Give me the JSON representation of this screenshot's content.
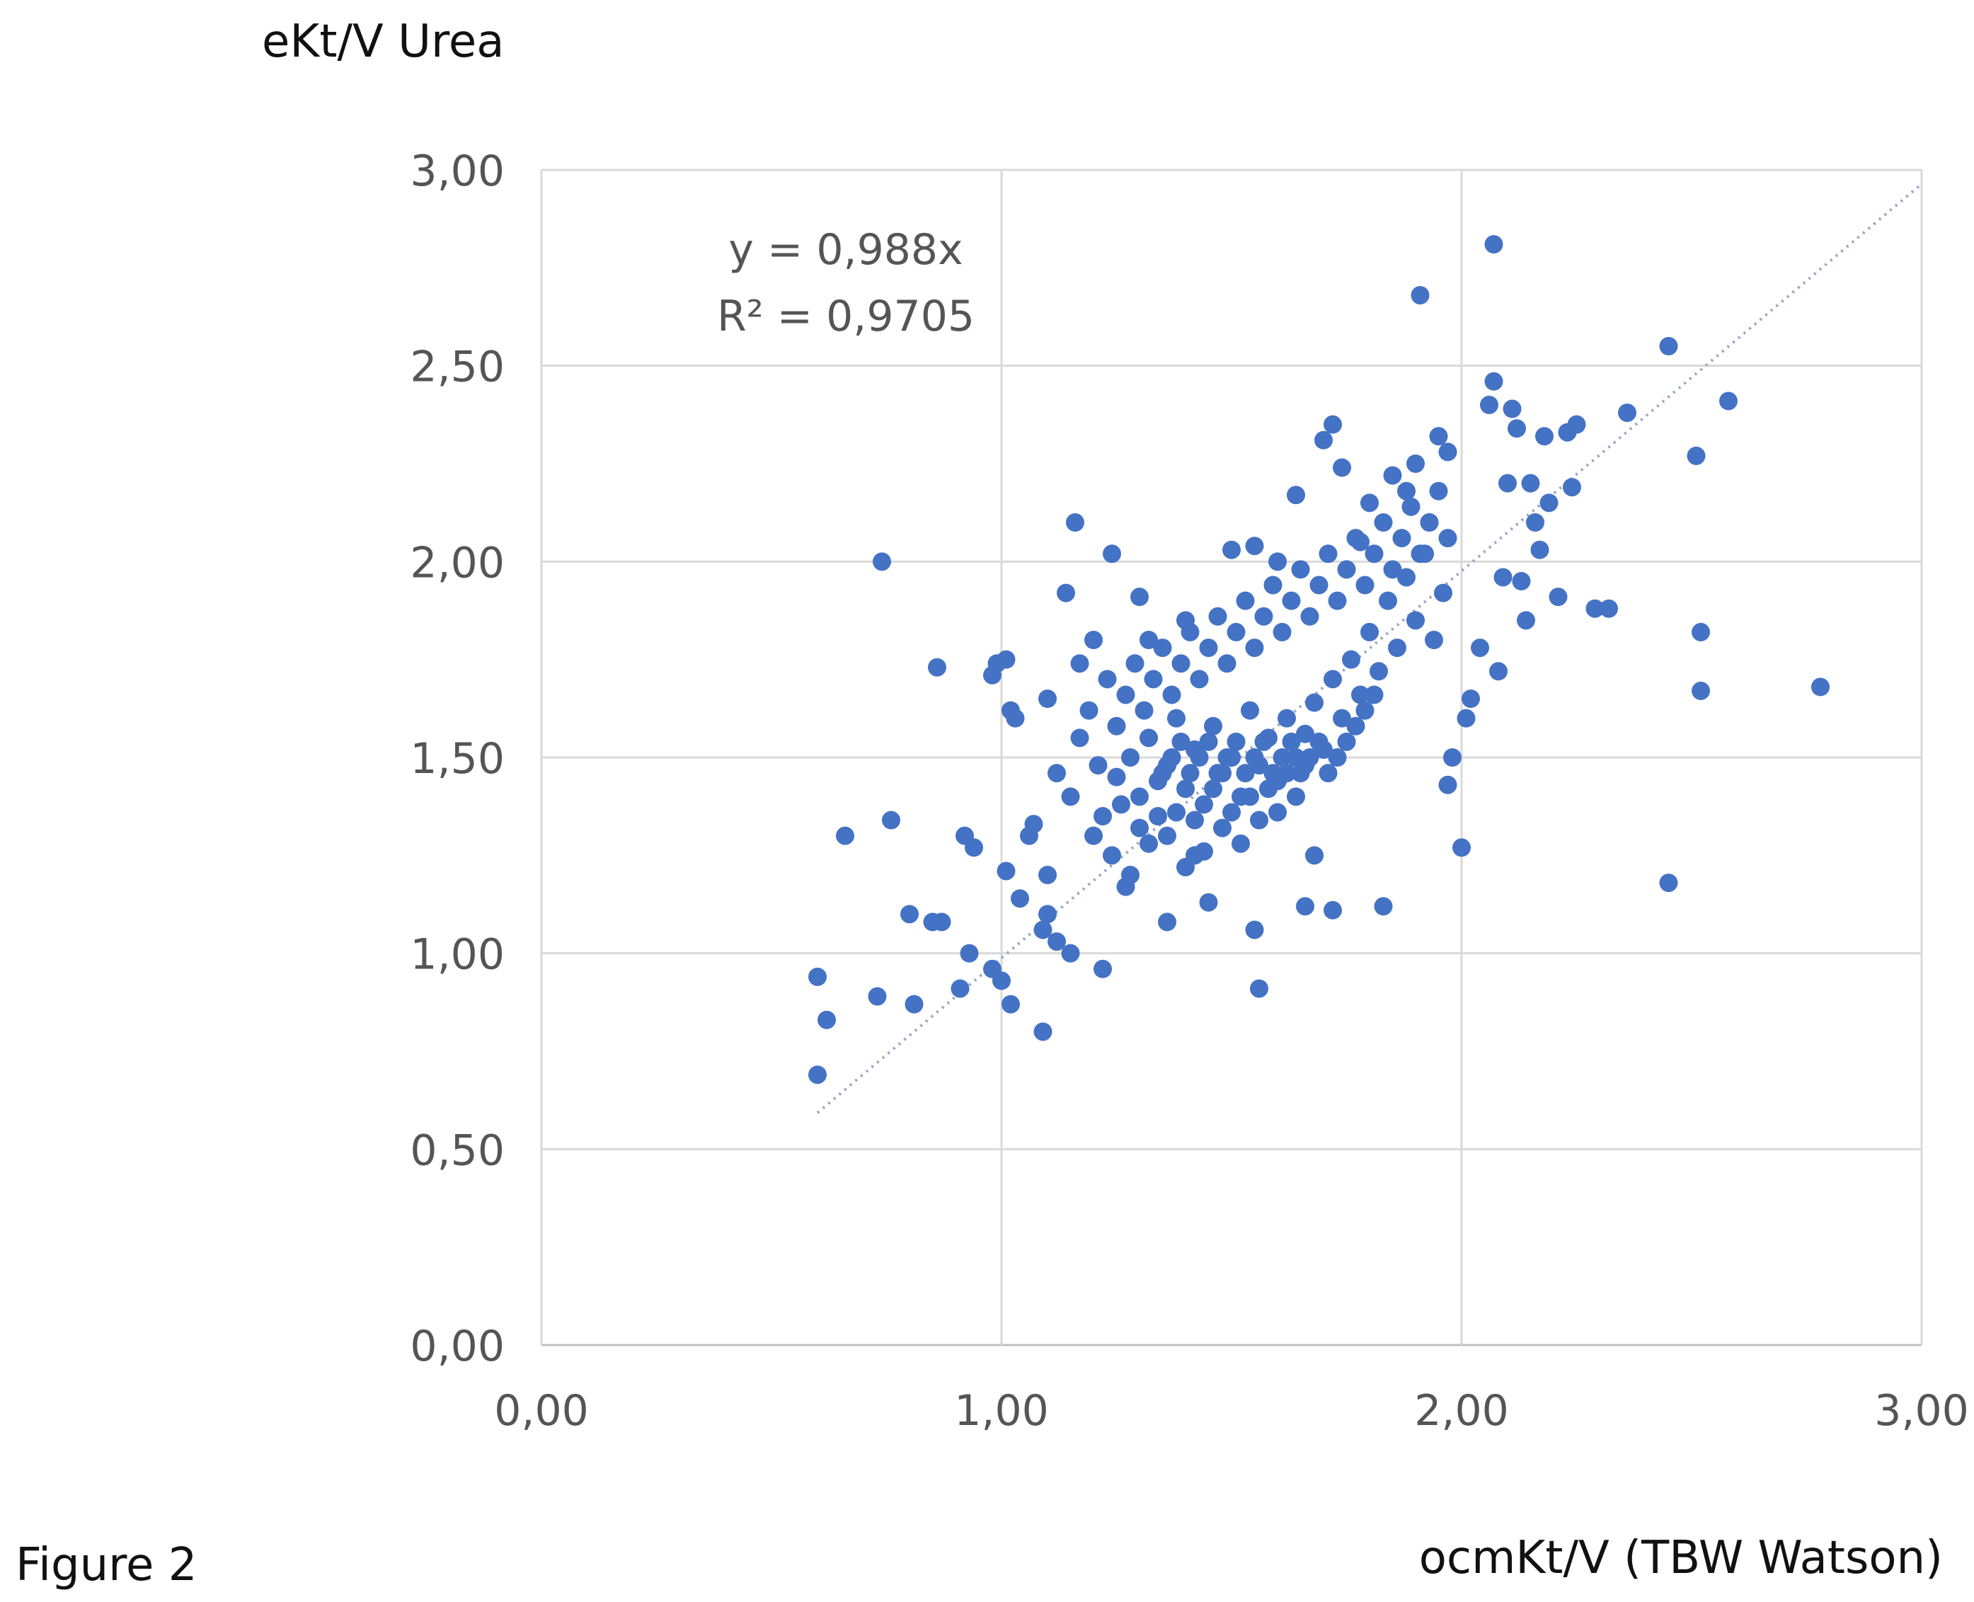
{
  "caption": "Figure 2",
  "chart_data": {
    "type": "scatter",
    "ylabel": "eKt/V Urea",
    "xlabel": "ocmKt/V (TBW Watson)",
    "xlim": [
      0,
      3
    ],
    "ylim": [
      0,
      3
    ],
    "x_ticks": [
      "0,00",
      "1,00",
      "2,00",
      "3,00"
    ],
    "y_ticks": [
      "0,00",
      "0,50",
      "1,00",
      "1,50",
      "2,00",
      "2,50",
      "3,00"
    ],
    "x_tick_values": [
      0,
      1,
      2,
      3
    ],
    "y_tick_values": [
      0,
      0.5,
      1,
      1.5,
      2,
      2.5,
      3
    ],
    "grid": true,
    "trendline": {
      "slope": 0.988,
      "x_range": [
        0.6,
        3.0
      ],
      "style": "dotted"
    },
    "annotations": [
      "y = 0,988x",
      "R² = 0,9705"
    ],
    "marker_color": "#4472C4",
    "points": [
      [
        0.6,
        0.69
      ],
      [
        0.6,
        0.94
      ],
      [
        0.62,
        0.83
      ],
      [
        0.66,
        1.3
      ],
      [
        0.73,
        0.89
      ],
      [
        0.74,
        2.0
      ],
      [
        0.76,
        1.34
      ],
      [
        0.8,
        1.1
      ],
      [
        0.81,
        0.87
      ],
      [
        0.85,
        1.08
      ],
      [
        0.86,
        1.73
      ],
      [
        0.87,
        1.08
      ],
      [
        0.91,
        0.91
      ],
      [
        0.92,
        1.3
      ],
      [
        0.93,
        1.0
      ],
      [
        0.94,
        1.27
      ],
      [
        0.98,
        0.96
      ],
      [
        0.98,
        1.71
      ],
      [
        0.99,
        1.74
      ],
      [
        1.0,
        0.93
      ],
      [
        1.01,
        1.75
      ],
      [
        1.01,
        1.21
      ],
      [
        1.02,
        0.87
      ],
      [
        1.02,
        1.62
      ],
      [
        1.03,
        1.6
      ],
      [
        1.04,
        1.14
      ],
      [
        1.06,
        1.3
      ],
      [
        1.07,
        1.33
      ],
      [
        1.09,
        1.06
      ],
      [
        1.09,
        0.8
      ],
      [
        1.1,
        1.1
      ],
      [
        1.1,
        1.2
      ],
      [
        1.1,
        1.65
      ],
      [
        1.12,
        1.46
      ],
      [
        1.12,
        1.03
      ],
      [
        1.14,
        1.92
      ],
      [
        1.15,
        1.0
      ],
      [
        1.16,
        2.1
      ],
      [
        1.17,
        1.74
      ],
      [
        1.2,
        1.8
      ],
      [
        1.22,
        0.96
      ],
      [
        1.24,
        2.02
      ],
      [
        1.27,
        1.17
      ],
      [
        1.3,
        1.91
      ],
      [
        1.32,
        1.8
      ],
      [
        1.36,
        1.08
      ],
      [
        1.4,
        1.85
      ],
      [
        1.42,
        1.25
      ],
      [
        1.45,
        1.13
      ],
      [
        1.5,
        2.03
      ],
      [
        1.55,
        1.06
      ],
      [
        1.56,
        0.91
      ],
      [
        1.55,
        2.04
      ],
      [
        1.6,
        2.0
      ],
      [
        1.64,
        2.17
      ],
      [
        1.66,
        1.12
      ],
      [
        1.68,
        1.25
      ],
      [
        1.7,
        2.31
      ],
      [
        1.72,
        2.35
      ],
      [
        1.72,
        1.11
      ],
      [
        1.74,
        2.24
      ],
      [
        1.78,
        2.05
      ],
      [
        1.8,
        2.15
      ],
      [
        1.83,
        1.12
      ],
      [
        1.85,
        2.22
      ],
      [
        1.88,
        2.18
      ],
      [
        1.9,
        2.25
      ],
      [
        1.91,
        2.68
      ],
      [
        1.93,
        2.1
      ],
      [
        1.95,
        2.32
      ],
      [
        1.97,
        2.28
      ],
      [
        1.97,
        1.43
      ],
      [
        1.98,
        1.5
      ],
      [
        2.0,
        1.27
      ],
      [
        2.01,
        1.6
      ],
      [
        2.02,
        1.65
      ],
      [
        2.04,
        1.78
      ],
      [
        2.06,
        2.4
      ],
      [
        2.07,
        2.46
      ],
      [
        2.07,
        2.81
      ],
      [
        2.08,
        1.72
      ],
      [
        2.09,
        1.96
      ],
      [
        2.1,
        2.2
      ],
      [
        2.11,
        2.39
      ],
      [
        2.12,
        2.34
      ],
      [
        2.13,
        1.95
      ],
      [
        2.14,
        1.85
      ],
      [
        2.15,
        2.2
      ],
      [
        2.16,
        2.1
      ],
      [
        2.17,
        2.03
      ],
      [
        2.18,
        2.32
      ],
      [
        2.19,
        2.15
      ],
      [
        2.21,
        1.91
      ],
      [
        2.23,
        2.33
      ],
      [
        2.24,
        2.19
      ],
      [
        2.25,
        2.35
      ],
      [
        2.29,
        1.88
      ],
      [
        2.32,
        1.88
      ],
      [
        2.36,
        2.38
      ],
      [
        2.45,
        2.55
      ],
      [
        2.45,
        1.18
      ],
      [
        2.51,
        2.27
      ],
      [
        2.52,
        1.82
      ],
      [
        2.52,
        1.67
      ],
      [
        2.58,
        2.41
      ],
      [
        2.78,
        1.68
      ],
      [
        1.25,
        1.45
      ],
      [
        1.28,
        1.5
      ],
      [
        1.3,
        1.4
      ],
      [
        1.32,
        1.55
      ],
      [
        1.34,
        1.35
      ],
      [
        1.36,
        1.48
      ],
      [
        1.38,
        1.6
      ],
      [
        1.4,
        1.42
      ],
      [
        1.42,
        1.52
      ],
      [
        1.44,
        1.38
      ],
      [
        1.46,
        1.58
      ],
      [
        1.48,
        1.46
      ],
      [
        1.5,
        1.5
      ],
      [
        1.52,
        1.4
      ],
      [
        1.54,
        1.62
      ],
      [
        1.56,
        1.48
      ],
      [
        1.58,
        1.55
      ],
      [
        1.6,
        1.44
      ],
      [
        1.62,
        1.6
      ],
      [
        1.64,
        1.5
      ],
      [
        1.66,
        1.56
      ],
      [
        1.68,
        1.64
      ],
      [
        1.7,
        1.52
      ],
      [
        1.72,
        1.7
      ],
      [
        1.74,
        1.6
      ],
      [
        1.76,
        1.75
      ],
      [
        1.78,
        1.66
      ],
      [
        1.8,
        1.82
      ],
      [
        1.82,
        1.72
      ],
      [
        1.84,
        1.9
      ],
      [
        1.86,
        1.78
      ],
      [
        1.88,
        1.96
      ],
      [
        1.9,
        1.85
      ],
      [
        1.92,
        2.02
      ],
      [
        1.94,
        1.8
      ],
      [
        1.96,
        1.92
      ],
      [
        1.2,
        1.3
      ],
      [
        1.22,
        1.35
      ],
      [
        1.24,
        1.25
      ],
      [
        1.26,
        1.38
      ],
      [
        1.28,
        1.2
      ],
      [
        1.3,
        1.32
      ],
      [
        1.32,
        1.28
      ],
      [
        1.34,
        1.44
      ],
      [
        1.36,
        1.3
      ],
      [
        1.38,
        1.36
      ],
      [
        1.4,
        1.22
      ],
      [
        1.42,
        1.34
      ],
      [
        1.44,
        1.26
      ],
      [
        1.46,
        1.42
      ],
      [
        1.48,
        1.32
      ],
      [
        1.5,
        1.36
      ],
      [
        1.52,
        1.28
      ],
      [
        1.54,
        1.4
      ],
      [
        1.56,
        1.34
      ],
      [
        1.58,
        1.42
      ],
      [
        1.6,
        1.36
      ],
      [
        1.62,
        1.46
      ],
      [
        1.64,
        1.4
      ],
      [
        1.66,
        1.48
      ],
      [
        1.15,
        1.4
      ],
      [
        1.17,
        1.55
      ],
      [
        1.19,
        1.62
      ],
      [
        1.21,
        1.48
      ],
      [
        1.23,
        1.7
      ],
      [
        1.25,
        1.58
      ],
      [
        1.27,
        1.66
      ],
      [
        1.29,
        1.74
      ],
      [
        1.31,
        1.62
      ],
      [
        1.33,
        1.7
      ],
      [
        1.35,
        1.78
      ],
      [
        1.37,
        1.66
      ],
      [
        1.39,
        1.74
      ],
      [
        1.41,
        1.82
      ],
      [
        1.43,
        1.7
      ],
      [
        1.45,
        1.78
      ],
      [
        1.47,
        1.86
      ],
      [
        1.49,
        1.74
      ],
      [
        1.51,
        1.82
      ],
      [
        1.53,
        1.9
      ],
      [
        1.55,
        1.78
      ],
      [
        1.57,
        1.86
      ],
      [
        1.59,
        1.94
      ],
      [
        1.61,
        1.82
      ],
      [
        1.63,
        1.9
      ],
      [
        1.65,
        1.98
      ],
      [
        1.67,
        1.86
      ],
      [
        1.69,
        1.94
      ],
      [
        1.71,
        2.02
      ],
      [
        1.73,
        1.9
      ],
      [
        1.75,
        1.98
      ],
      [
        1.77,
        2.06
      ],
      [
        1.79,
        1.94
      ],
      [
        1.81,
        2.02
      ],
      [
        1.83,
        2.1
      ],
      [
        1.85,
        1.98
      ],
      [
        1.87,
        2.06
      ],
      [
        1.89,
        2.14
      ],
      [
        1.91,
        2.02
      ],
      [
        1.93,
        2.1
      ],
      [
        1.95,
        2.18
      ],
      [
        1.97,
        2.06
      ],
      [
        1.35,
        1.46
      ],
      [
        1.37,
        1.5
      ],
      [
        1.39,
        1.54
      ],
      [
        1.41,
        1.46
      ],
      [
        1.43,
        1.5
      ],
      [
        1.45,
        1.54
      ],
      [
        1.47,
        1.46
      ],
      [
        1.49,
        1.5
      ],
      [
        1.51,
        1.54
      ],
      [
        1.53,
        1.46
      ],
      [
        1.55,
        1.5
      ],
      [
        1.57,
        1.54
      ],
      [
        1.59,
        1.46
      ],
      [
        1.61,
        1.5
      ],
      [
        1.63,
        1.54
      ],
      [
        1.65,
        1.46
      ],
      [
        1.67,
        1.5
      ],
      [
        1.69,
        1.54
      ],
      [
        1.71,
        1.46
      ],
      [
        1.73,
        1.5
      ],
      [
        1.75,
        1.54
      ],
      [
        1.77,
        1.58
      ],
      [
        1.79,
        1.62
      ],
      [
        1.81,
        1.66
      ]
    ]
  }
}
